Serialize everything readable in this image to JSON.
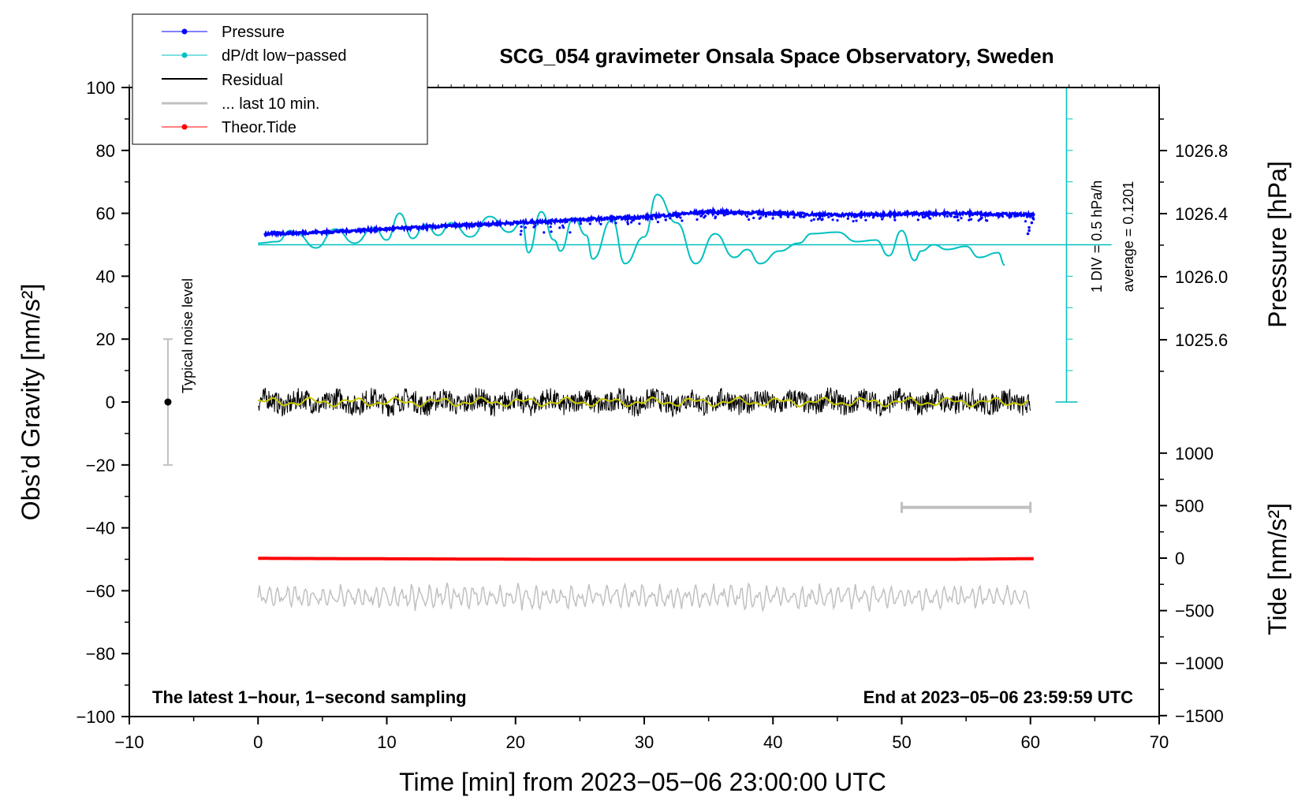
{
  "chart_data": {
    "type": "line",
    "title": "SCG_054 gravimeter Onsala Space Observatory, Sweden",
    "xlabel": "Time [min] from 2023−05−06 23:00:00 UTC",
    "ylabel": "Obs’d Gravity [nm/s²]",
    "xlim": [
      -10,
      70
    ],
    "ylim": [
      -100,
      100
    ],
    "x_ticks": [
      "−10",
      "0",
      "10",
      "20",
      "30",
      "40",
      "50",
      "60",
      "70"
    ],
    "y_ticks": [
      "100",
      "80",
      "60",
      "40",
      "20",
      "0",
      "−20",
      "−40",
      "−60",
      "−80",
      "−100"
    ],
    "right_pressure_axis": {
      "label": "Pressure [hPa]",
      "ticks": [
        "1026.8",
        "1026.4",
        "1026.0",
        "1025.6"
      ]
    },
    "right_tide_axis": {
      "label": "Tide [nm/s²]",
      "ticks": [
        "1000",
        "500",
        "0",
        "−500",
        "−1000",
        "−1500"
      ]
    },
    "legend": [
      {
        "label": "Pressure",
        "color": "#0000ff",
        "marker": true
      },
      {
        "label": "dP/dt low−passed",
        "color": "#00c0c0",
        "marker": true
      },
      {
        "label": "Residual",
        "color": "#000000",
        "marker": false
      },
      {
        "label": "... last 10 min.",
        "color": "#c0c0c0",
        "marker": false
      },
      {
        "label": "Theor.Tide",
        "color": "#ff0000",
        "marker": true
      }
    ],
    "annotations": {
      "noise": "Typical noise level",
      "div": "1 DIV = 0.5 hPa/h",
      "average": "average = 0.1201",
      "left_note": "The latest 1−hour, 1−second sampling",
      "right_note": "End at 2023−05−06 23:59:59 UTC"
    },
    "colors": {
      "pressure": "#0000ff",
      "dpdt": "#00c0c0",
      "residual": "#000000",
      "residual_smooth": "#c8c800",
      "last10": "#c0c0c0",
      "tide": "#ff0000",
      "scale_bar": "#c0c0c0"
    },
    "series": [
      {
        "name": "Pressure",
        "x": [
          0.5,
          5,
          10,
          15,
          20,
          25,
          30,
          35,
          40,
          45,
          50,
          55,
          60
        ],
        "values": [
          53.5,
          54.0,
          55.0,
          56.0,
          57.0,
          58.0,
          58.8,
          60.5,
          60.0,
          59.5,
          59.8,
          60.0,
          59.5
        ]
      },
      {
        "name": "dP/dt low-passed",
        "x": [
          0.0,
          1.5,
          2.5,
          3.0,
          4.5,
          6.0,
          7.5,
          9.0,
          10.0,
          11.0,
          12.0,
          13.0,
          14.0,
          15.0,
          16.5,
          18.0,
          19.5,
          20.5,
          21.0,
          22.0,
          23.0,
          23.5,
          24.5,
          25.5,
          26.0,
          27.5,
          28.5,
          30.0,
          31.0,
          32.5,
          34.0,
          35.5,
          37.0,
          38.0,
          39.0,
          40.5,
          42.0,
          43.0,
          45.0,
          46.5,
          48.0,
          49.0,
          50.0,
          51.0,
          51.5,
          52.5,
          53.5,
          55.0,
          56.0,
          57.5,
          58.0
        ],
        "values": [
          50.5,
          51.0,
          54.5,
          53.5,
          49.0,
          55.0,
          50.5,
          55.5,
          51.5,
          60.0,
          52.0,
          56.5,
          53.0,
          57.0,
          52.5,
          59.0,
          54.0,
          57.0,
          47.5,
          60.5,
          51.5,
          48.0,
          58.5,
          53.0,
          45.5,
          58.0,
          44.0,
          52.5,
          66.0,
          57.0,
          44.0,
          53.5,
          46.0,
          48.5,
          44.0,
          48.0,
          50.5,
          53.5,
          54.0,
          51.0,
          51.5,
          46.5,
          54.5,
          45.0,
          48.0,
          50.0,
          48.5,
          49.5,
          46.0,
          47.5,
          43.5
        ]
      },
      {
        "name": "Residual",
        "x": [
          0,
          60
        ],
        "values": [
          0.0,
          0.0
        ]
      },
      {
        "name": "... last 10 min.",
        "x": [
          0,
          60
        ],
        "values": [
          -62.0,
          -62.0
        ]
      },
      {
        "name": "Theor.Tide",
        "x": [
          0,
          7,
          22,
          54,
          60
        ],
        "values": [
          -49.7,
          -49.8,
          -50.0,
          -50.0,
          -49.8
        ]
      }
    ]
  }
}
